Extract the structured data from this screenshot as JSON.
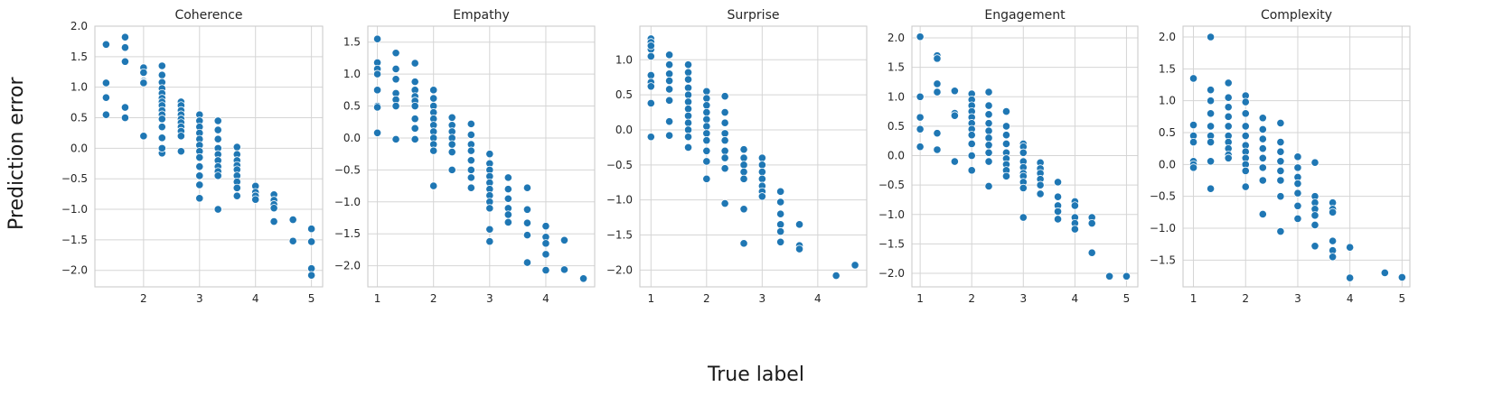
{
  "figure": {
    "ylabel": "Prediction error",
    "xlabel": "True label",
    "colors": {
      "point": "#1f77b4",
      "point_edge": "#ffffff",
      "grid": "#d5d5d5",
      "frame": "#cccccc",
      "text": "#262626"
    }
  },
  "chart_data": [
    {
      "type": "scatter",
      "title": "Coherence",
      "xlabel": "",
      "ylabel": "",
      "xlim": [
        1.13,
        5.2
      ],
      "ylim": [
        -2.27,
        2.0
      ],
      "xticks": [
        2,
        3,
        4,
        5
      ],
      "yticks": [
        -2.0,
        -1.5,
        -1.0,
        -0.5,
        0.0,
        0.5,
        1.0,
        1.5,
        2.0
      ],
      "grid": true,
      "x": [
        1.33,
        1.33,
        1.33,
        1.33,
        1.67,
        1.67,
        1.67,
        1.67,
        1.67,
        2.0,
        2.0,
        2.0,
        2.0,
        2.0,
        2.0,
        2.33,
        2.33,
        2.33,
        2.33,
        2.33,
        2.33,
        2.33,
        2.33,
        2.33,
        2.33,
        2.33,
        2.33,
        2.33,
        2.33,
        2.33,
        2.67,
        2.67,
        2.67,
        2.67,
        2.67,
        2.67,
        2.67,
        2.67,
        2.67,
        2.67,
        3.0,
        3.0,
        3.0,
        3.0,
        3.0,
        3.0,
        3.0,
        3.0,
        3.0,
        3.0,
        3.0,
        3.0,
        3.33,
        3.33,
        3.33,
        3.33,
        3.33,
        3.33,
        3.33,
        3.33,
        3.33,
        3.33,
        3.67,
        3.67,
        3.67,
        3.67,
        3.67,
        3.67,
        3.67,
        3.67,
        3.67,
        4.0,
        4.0,
        4.0,
        4.0,
        4.33,
        4.33,
        4.33,
        4.33,
        4.33,
        4.67,
        4.67,
        5.0,
        5.0,
        5.0,
        5.0
      ],
      "y": [
        1.7,
        1.07,
        0.83,
        0.55,
        1.82,
        1.65,
        1.42,
        0.67,
        0.5,
        1.32,
        1.24,
        1.1,
        1.08,
        1.07,
        0.2,
        1.35,
        1.2,
        1.08,
        0.98,
        0.9,
        0.82,
        0.76,
        0.7,
        0.62,
        0.55,
        0.48,
        0.35,
        0.17,
        -0.08,
        0.0,
        0.76,
        0.7,
        0.62,
        0.55,
        0.48,
        0.42,
        0.35,
        0.28,
        0.2,
        -0.05,
        0.55,
        0.45,
        0.35,
        0.25,
        0.15,
        0.05,
        -0.05,
        -0.15,
        -0.3,
        -0.45,
        -0.6,
        -0.82,
        0.45,
        0.3,
        0.15,
        0.0,
        -0.1,
        -0.2,
        -0.3,
        -0.38,
        -0.45,
        -1.0,
        0.02,
        -0.1,
        -0.2,
        -0.28,
        -0.35,
        -0.45,
        -0.55,
        -0.65,
        -0.78,
        -0.62,
        -0.72,
        -0.78,
        -0.84,
        -0.76,
        -0.85,
        -0.92,
        -0.98,
        -1.2,
        -1.17,
        -1.52,
        -1.32,
        -1.53,
        -1.97,
        -2.08
      ]
    },
    {
      "type": "scatter",
      "title": "Empathy",
      "xlabel": "",
      "ylabel": "",
      "xlim": [
        0.83,
        4.87
      ],
      "ylim": [
        -2.33,
        1.75
      ],
      "xticks": [
        1,
        2,
        3,
        4
      ],
      "yticks": [
        -2.0,
        -1.5,
        -1.0,
        -0.5,
        0.0,
        0.5,
        1.0,
        1.5
      ],
      "grid": true,
      "x": [
        1.0,
        1.0,
        1.0,
        1.0,
        1.0,
        1.0,
        1.0,
        1.0,
        1.33,
        1.33,
        1.33,
        1.33,
        1.33,
        1.33,
        1.33,
        1.67,
        1.67,
        1.67,
        1.67,
        1.67,
        1.67,
        1.67,
        1.67,
        1.67,
        2.0,
        2.0,
        2.0,
        2.0,
        2.0,
        2.0,
        2.0,
        2.0,
        2.0,
        2.0,
        2.0,
        2.33,
        2.33,
        2.33,
        2.33,
        2.33,
        2.33,
        2.33,
        2.67,
        2.67,
        2.67,
        2.67,
        2.67,
        2.67,
        2.67,
        2.67,
        3.0,
        3.0,
        3.0,
        3.0,
        3.0,
        3.0,
        3.0,
        3.0,
        3.0,
        3.0,
        3.0,
        3.33,
        3.33,
        3.33,
        3.33,
        3.33,
        3.33,
        3.67,
        3.67,
        3.67,
        3.67,
        3.67,
        4.0,
        4.0,
        4.0,
        4.0,
        4.0,
        4.33,
        4.33,
        4.67
      ],
      "y": [
        1.55,
        1.18,
        1.08,
        1.0,
        0.75,
        0.5,
        0.08,
        0.48,
        1.33,
        1.08,
        0.92,
        0.7,
        0.6,
        0.5,
        -0.02,
        1.17,
        0.88,
        0.75,
        0.65,
        0.58,
        0.5,
        0.3,
        0.15,
        -0.02,
        0.75,
        0.62,
        0.5,
        0.4,
        0.3,
        0.2,
        0.1,
        0.0,
        -0.1,
        -0.2,
        -0.75,
        0.32,
        0.2,
        0.1,
        0.0,
        -0.1,
        -0.22,
        -0.5,
        0.22,
        0.05,
        -0.1,
        -0.2,
        -0.35,
        -0.5,
        -0.62,
        -0.78,
        -0.25,
        -0.4,
        -0.5,
        -0.6,
        -0.7,
        -0.8,
        -0.9,
        -1.0,
        -1.1,
        -1.43,
        -1.62,
        -0.62,
        -0.8,
        -0.95,
        -1.1,
        -1.2,
        -1.32,
        -0.78,
        -1.12,
        -1.33,
        -1.52,
        -1.95,
        -1.38,
        -1.55,
        -1.65,
        -1.82,
        -2.07,
        -1.6,
        -2.06,
        -2.2
      ]
    },
    {
      "type": "scatter",
      "title": "Surprise",
      "xlabel": "",
      "ylabel": "",
      "xlim": [
        0.8,
        4.88
      ],
      "ylim": [
        -2.24,
        1.48
      ],
      "xticks": [
        1,
        2,
        3,
        4
      ],
      "yticks": [
        -2.0,
        -1.5,
        -1.0,
        -0.5,
        0.0,
        0.5,
        1.0
      ],
      "grid": true,
      "x": [
        1.0,
        1.0,
        1.0,
        1.0,
        1.0,
        1.0,
        1.0,
        1.0,
        1.0,
        1.0,
        1.33,
        1.33,
        1.33,
        1.33,
        1.33,
        1.33,
        1.33,
        1.33,
        1.67,
        1.67,
        1.67,
        1.67,
        1.67,
        1.67,
        1.67,
        1.67,
        1.67,
        1.67,
        1.67,
        1.67,
        2.0,
        2.0,
        2.0,
        2.0,
        2.0,
        2.0,
        2.0,
        2.0,
        2.0,
        2.0,
        2.0,
        2.33,
        2.33,
        2.33,
        2.33,
        2.33,
        2.33,
        2.33,
        2.33,
        2.33,
        2.67,
        2.67,
        2.67,
        2.67,
        2.67,
        2.67,
        2.67,
        3.0,
        3.0,
        3.0,
        3.0,
        3.0,
        3.0,
        3.0,
        3.33,
        3.33,
        3.33,
        3.33,
        3.33,
        3.33,
        3.67,
        3.67,
        3.67,
        4.33,
        4.67
      ],
      "y": [
        1.3,
        1.25,
        1.15,
        1.05,
        0.78,
        0.68,
        0.62,
        0.38,
        -0.1,
        1.2,
        1.07,
        0.93,
        0.8,
        0.7,
        0.58,
        0.42,
        0.12,
        -0.08,
        0.93,
        0.82,
        0.72,
        0.6,
        0.5,
        0.4,
        0.3,
        0.2,
        0.1,
        0.0,
        -0.1,
        -0.25,
        0.55,
        0.45,
        0.35,
        0.25,
        0.15,
        0.05,
        -0.05,
        -0.15,
        -0.3,
        -0.45,
        -0.7,
        0.48,
        0.25,
        0.1,
        -0.05,
        -0.15,
        -0.3,
        -0.4,
        -0.55,
        -1.05,
        -0.28,
        -0.4,
        -0.5,
        -0.6,
        -0.7,
        -1.13,
        -1.62,
        -0.4,
        -0.5,
        -0.6,
        -0.7,
        -0.8,
        -0.88,
        -0.95,
        -0.88,
        -1.03,
        -1.2,
        -1.35,
        -1.45,
        -1.6,
        -1.35,
        -1.65,
        -1.7,
        -2.08,
        -1.93
      ]
    },
    {
      "type": "scatter",
      "title": "Engagement",
      "xlabel": "",
      "ylabel": "",
      "xlim": [
        0.84,
        5.22
      ],
      "ylim": [
        -2.23,
        2.2
      ],
      "xticks": [
        1,
        2,
        3,
        4,
        5
      ],
      "yticks": [
        -2.0,
        -1.5,
        -1.0,
        -0.5,
        0.0,
        0.5,
        1.0,
        1.5,
        2.0
      ],
      "grid": true,
      "x": [
        1.0,
        1.0,
        1.0,
        1.0,
        1.0,
        1.33,
        1.33,
        1.33,
        1.33,
        1.33,
        1.33,
        1.67,
        1.67,
        1.67,
        1.67,
        2.0,
        2.0,
        2.0,
        2.0,
        2.0,
        2.0,
        2.0,
        2.0,
        2.0,
        2.0,
        2.0,
        2.33,
        2.33,
        2.33,
        2.33,
        2.33,
        2.33,
        2.33,
        2.33,
        2.33,
        2.33,
        2.67,
        2.67,
        2.67,
        2.67,
        2.67,
        2.67,
        2.67,
        2.67,
        2.67,
        3.0,
        3.0,
        3.0,
        3.0,
        3.0,
        3.0,
        3.0,
        3.0,
        3.0,
        3.0,
        3.33,
        3.33,
        3.33,
        3.33,
        3.33,
        3.33,
        3.67,
        3.67,
        3.67,
        3.67,
        3.67,
        4.0,
        4.0,
        4.0,
        4.0,
        4.0,
        4.33,
        4.33,
        4.33,
        4.67,
        5.0
      ],
      "y": [
        2.02,
        1.0,
        0.65,
        0.45,
        0.15,
        1.7,
        1.65,
        1.22,
        1.08,
        0.38,
        0.1,
        1.1,
        0.72,
        0.68,
        -0.1,
        1.05,
        0.95,
        0.85,
        0.75,
        0.65,
        0.55,
        0.45,
        0.35,
        0.2,
        0.0,
        -0.25,
        1.08,
        0.85,
        0.7,
        0.55,
        0.42,
        0.3,
        0.18,
        0.05,
        -0.1,
        -0.52,
        0.75,
        0.5,
        0.35,
        0.2,
        0.05,
        -0.05,
        -0.15,
        -0.25,
        -0.35,
        0.2,
        0.15,
        0.05,
        -0.1,
        -0.2,
        -0.3,
        -0.35,
        -0.45,
        -0.55,
        -1.05,
        -0.12,
        -0.22,
        -0.3,
        -0.4,
        -0.5,
        -0.65,
        -0.45,
        -0.7,
        -0.85,
        -0.95,
        -1.08,
        -0.78,
        -0.85,
        -1.05,
        -1.15,
        -1.25,
        -1.05,
        -1.15,
        -1.65,
        -2.05,
        -2.05
      ]
    },
    {
      "type": "scatter",
      "title": "Complexity",
      "xlabel": "",
      "ylabel": "",
      "xlim": [
        0.8,
        5.15
      ],
      "ylim": [
        -1.92,
        2.17
      ],
      "xticks": [
        1,
        2,
        3,
        4,
        5
      ],
      "yticks": [
        -1.5,
        -1.0,
        -0.5,
        0.0,
        0.5,
        1.0,
        1.5,
        2.0
      ],
      "grid": true,
      "x": [
        1.0,
        1.0,
        1.0,
        1.0,
        1.0,
        1.0,
        1.0,
        1.33,
        1.33,
        1.33,
        1.33,
        1.33,
        1.33,
        1.33,
        1.33,
        1.33,
        1.67,
        1.67,
        1.67,
        1.67,
        1.67,
        1.67,
        1.67,
        1.67,
        1.67,
        1.67,
        2.0,
        2.0,
        2.0,
        2.0,
        2.0,
        2.0,
        2.0,
        2.0,
        2.0,
        2.0,
        2.0,
        2.33,
        2.33,
        2.33,
        2.33,
        2.33,
        2.33,
        2.33,
        2.33,
        2.67,
        2.67,
        2.67,
        2.67,
        2.67,
        2.67,
        2.67,
        2.67,
        3.0,
        3.0,
        3.0,
        3.0,
        3.0,
        3.0,
        3.0,
        3.33,
        3.33,
        3.33,
        3.33,
        3.33,
        3.33,
        3.33,
        3.67,
        3.67,
        3.67,
        3.67,
        3.67,
        3.67,
        4.0,
        4.0,
        4.67,
        5.0
      ],
      "y": [
        1.35,
        0.62,
        0.45,
        0.35,
        0.05,
        0.0,
        -0.05,
        2.0,
        1.17,
        1.0,
        0.8,
        0.6,
        0.45,
        0.35,
        0.05,
        -0.38,
        1.28,
        1.05,
        0.9,
        0.75,
        0.6,
        0.45,
        0.35,
        0.25,
        0.15,
        0.1,
        1.08,
        0.98,
        0.8,
        0.6,
        0.45,
        0.3,
        0.2,
        0.1,
        0.0,
        -0.1,
        -0.35,
        0.73,
        0.55,
        0.4,
        0.25,
        0.1,
        -0.05,
        -0.25,
        -0.78,
        0.65,
        0.35,
        0.2,
        0.05,
        -0.1,
        -0.25,
        -0.5,
        -1.05,
        0.12,
        -0.05,
        -0.2,
        -0.3,
        -0.45,
        -0.65,
        -0.85,
        0.03,
        -0.5,
        -0.6,
        -0.7,
        -0.8,
        -0.95,
        -1.28,
        -0.6,
        -0.7,
        -1.2,
        -1.35,
        -1.45,
        -0.75,
        -1.3,
        -1.78,
        -1.7,
        -1.77
      ]
    }
  ]
}
